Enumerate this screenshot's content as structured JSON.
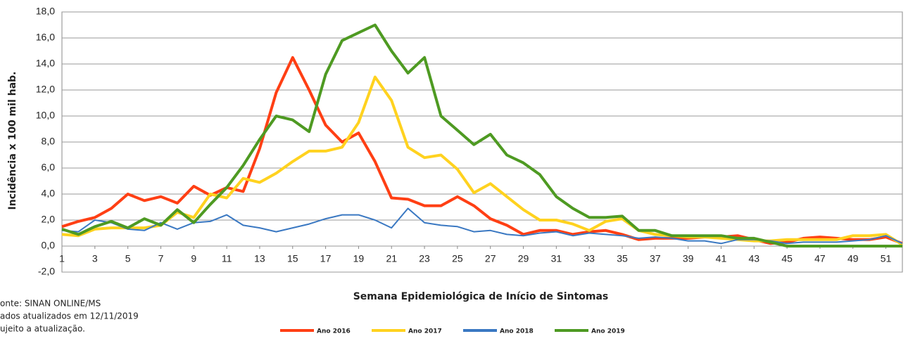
{
  "chart_data": {
    "type": "line",
    "y_label": "Incidência x 100 mil hab.",
    "x_label": "Semana Epidemiológica de Início de Sintomas",
    "footnotes": [
      "onte: SINAN ONLINE/MS",
      "ados atualizados em 12/11/2019",
      "ujeito a atualização."
    ],
    "x": [
      1,
      2,
      3,
      4,
      5,
      6,
      7,
      8,
      9,
      10,
      11,
      12,
      13,
      14,
      15,
      16,
      17,
      18,
      19,
      20,
      21,
      22,
      23,
      24,
      25,
      26,
      27,
      28,
      29,
      30,
      31,
      32,
      33,
      34,
      35,
      36,
      37,
      38,
      39,
      40,
      41,
      42,
      43,
      44,
      45,
      46,
      47,
      48,
      49,
      50,
      51,
      52
    ],
    "xlim": [
      1,
      52
    ],
    "xticks": [
      1,
      3,
      5,
      7,
      9,
      11,
      13,
      15,
      17,
      19,
      21,
      23,
      25,
      27,
      29,
      31,
      33,
      35,
      37,
      39,
      41,
      43,
      45,
      47,
      49,
      51
    ],
    "ylim": [
      -2,
      18
    ],
    "yticks": [
      {
        "value": 18,
        "label": "18,0"
      },
      {
        "value": 16,
        "label": "16,0"
      },
      {
        "value": 14,
        "label": "14,0"
      },
      {
        "value": 12,
        "label": "12,0"
      },
      {
        "value": 10,
        "label": "10,0"
      },
      {
        "value": 8,
        "label": "8,0"
      },
      {
        "value": 6,
        "label": "6,0"
      },
      {
        "value": 4,
        "label": "4,0"
      },
      {
        "value": 2,
        "label": "2,0"
      },
      {
        "value": 0,
        "label": "0,0"
      },
      {
        "value": -2,
        "label": "-2,0"
      }
    ],
    "grid": true,
    "legend": "bottom",
    "series": [
      {
        "name": "Ano 2016",
        "color": "#ff3f14",
        "values": [
          1.5,
          1.9,
          2.2,
          2.9,
          4.0,
          3.5,
          3.8,
          3.3,
          4.6,
          3.9,
          4.5,
          4.2,
          7.5,
          11.8,
          14.5,
          12.0,
          9.3,
          8.0,
          8.7,
          6.5,
          3.7,
          3.6,
          3.1,
          3.1,
          3.8,
          3.1,
          2.1,
          1.6,
          0.9,
          1.2,
          1.2,
          0.9,
          1.1,
          1.2,
          0.9,
          0.5,
          0.6,
          0.6,
          0.6,
          0.7,
          0.7,
          0.8,
          0.5,
          0.2,
          0.3,
          0.6,
          0.7,
          0.6,
          0.5,
          0.5,
          0.7,
          0.2
        ]
      },
      {
        "name": "Ano 2017",
        "color": "#ffd21f",
        "values": [
          0.9,
          0.8,
          1.3,
          1.4,
          1.4,
          1.4,
          1.6,
          2.6,
          2.2,
          4.0,
          3.7,
          5.2,
          4.9,
          5.6,
          6.5,
          7.3,
          7.3,
          7.6,
          9.5,
          13.0,
          11.2,
          7.6,
          6.8,
          7.0,
          5.9,
          4.1,
          4.8,
          3.8,
          2.8,
          2.0,
          2.0,
          1.7,
          1.2,
          1.9,
          2.1,
          1.2,
          0.9,
          0.8,
          0.7,
          0.7,
          0.6,
          0.5,
          0.4,
          0.4,
          0.5,
          0.5,
          0.5,
          0.5,
          0.8,
          0.8,
          0.9,
          0.1
        ]
      },
      {
        "name": "Ano 2018",
        "color": "#3a78c2",
        "values": [
          1.2,
          1.1,
          2.0,
          1.8,
          1.3,
          1.2,
          1.8,
          1.3,
          1.8,
          1.9,
          2.4,
          1.6,
          1.4,
          1.1,
          1.4,
          1.7,
          2.1,
          2.4,
          2.4,
          2.0,
          1.4,
          2.9,
          1.8,
          1.6,
          1.5,
          1.1,
          1.2,
          0.9,
          0.8,
          1.0,
          1.1,
          0.8,
          1.0,
          0.9,
          0.8,
          0.6,
          0.7,
          0.6,
          0.4,
          0.4,
          0.2,
          0.5,
          0.5,
          0.4,
          0.2,
          0.3,
          0.3,
          0.3,
          0.4,
          0.5,
          0.8,
          0.2
        ]
      },
      {
        "name": "Ano 2019",
        "color": "#4e9a22",
        "values": [
          1.3,
          0.9,
          1.5,
          1.9,
          1.4,
          2.1,
          1.6,
          2.8,
          1.8,
          3.2,
          4.5,
          6.2,
          8.2,
          10.0,
          9.7,
          8.8,
          13.2,
          15.8,
          16.4,
          17.0,
          15.0,
          13.3,
          14.5,
          10.0,
          8.9,
          7.8,
          8.6,
          7.0,
          6.4,
          5.5,
          3.8,
          2.9,
          2.2,
          2.2,
          2.3,
          1.2,
          1.2,
          0.8,
          0.8,
          0.8,
          0.8,
          0.6,
          0.6,
          0.3,
          0,
          0,
          0,
          0,
          0,
          0,
          0,
          0
        ]
      }
    ]
  }
}
